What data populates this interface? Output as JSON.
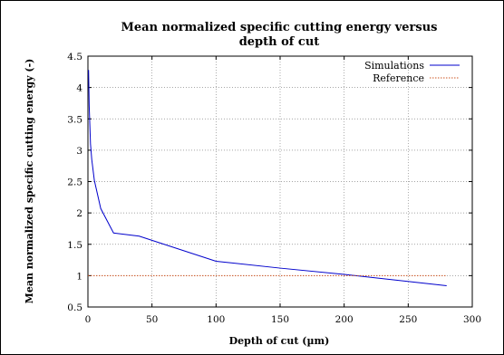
{
  "chart_data": {
    "type": "line",
    "title_lines": [
      "Mean normalized specific cutting energy versus",
      "depth of cut"
    ],
    "xlabel": "Depth of cut (µm)",
    "ylabel": "Mean normalized specific cutting energy (-)",
    "xlim": [
      0,
      300
    ],
    "ylim": [
      0.5,
      4.5
    ],
    "xticks": [
      0,
      50,
      100,
      150,
      200,
      250,
      300
    ],
    "yticks": [
      0.5,
      1,
      1.5,
      2,
      2.5,
      3,
      3.5,
      4,
      4.5
    ],
    "grid": true,
    "legend_position": "top-right",
    "series": [
      {
        "name": "Simulations",
        "color": "#0000cc",
        "style": "solid",
        "x": [
          0.5,
          1,
          2,
          3,
          5,
          10,
          20,
          40,
          100,
          150,
          200,
          280
        ],
        "y": [
          4.28,
          3.7,
          3.1,
          2.85,
          2.52,
          2.07,
          1.68,
          1.63,
          1.23,
          1.12,
          1.02,
          0.84
        ]
      },
      {
        "name": "Reference",
        "color": "#cc5522",
        "style": "dotted",
        "x": [
          0,
          280
        ],
        "y": [
          1.0,
          1.0
        ]
      }
    ]
  }
}
